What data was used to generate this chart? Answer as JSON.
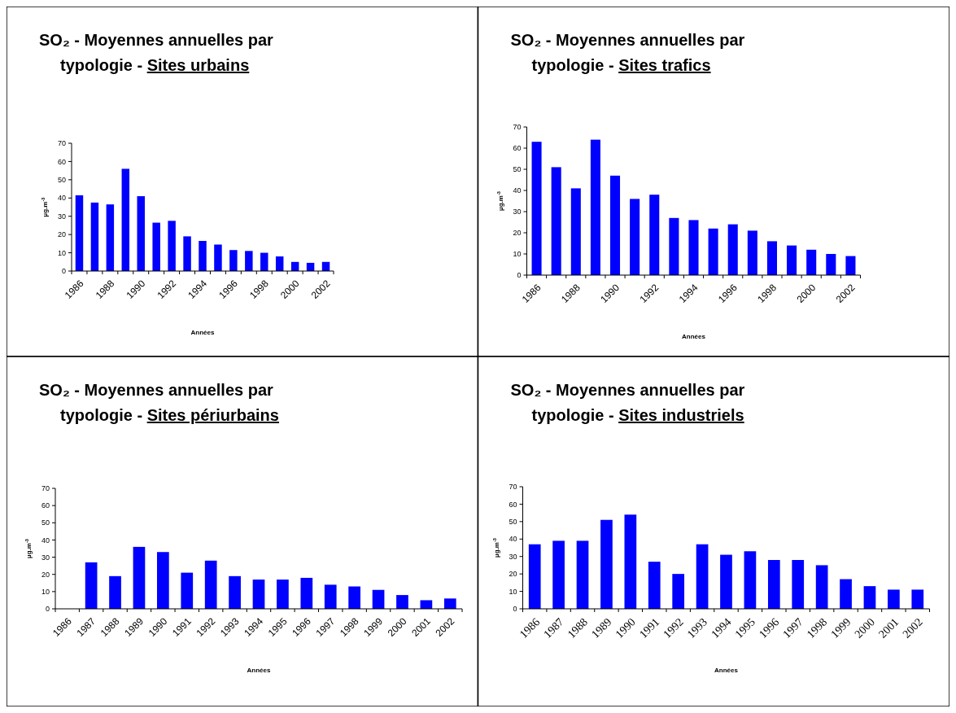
{
  "chart_data": [
    {
      "type": "bar",
      "title": "SO₂ - Moyennes annuelles par typologie -",
      "subtitle": "Sites urbains",
      "xlabel": "Années",
      "ylabel": "µg.m$^{-3}$",
      "categories": [
        "1986",
        null,
        "1988",
        null,
        "1990",
        null,
        "1992",
        null,
        "1994",
        null,
        "1996",
        null,
        "1998",
        null,
        "2000",
        null,
        "2002"
      ],
      "color": "#0000ff",
      "values": [
        41.5,
        37.5,
        36.5,
        56,
        41,
        26.5,
        27.5,
        19,
        16.5,
        14.5,
        11.5,
        11,
        10,
        8,
        5,
        4.5,
        5
      ],
      "ylim": [
        0,
        70
      ],
      "yticks": [
        0,
        10,
        20,
        30,
        40,
        50,
        60,
        70
      ],
      "grid": false
    },
    {
      "type": "bar",
      "title": "SO₂ - Moyennes annuelles par typologie -",
      "subtitle": "Sites trafics",
      "xlabel": "Années",
      "ylabel": "µg.m$^{-3}$",
      "categories": [
        "1986",
        null,
        "1988",
        null,
        "1990",
        null,
        "1992",
        null,
        "1994",
        null,
        "1996",
        null,
        "1998",
        null,
        "2000",
        null,
        "2002"
      ],
      "color": "#0000ff",
      "values": [
        63,
        51,
        41,
        64,
        47,
        36,
        38,
        27,
        26,
        22,
        24,
        21,
        16,
        14,
        12,
        10,
        9
      ],
      "ylim": [
        0,
        70
      ],
      "yticks": [
        0,
        10,
        20,
        30,
        40,
        50,
        60,
        70
      ],
      "grid": false
    },
    {
      "type": "bar",
      "title": "SO₂ - Moyennes annuelles par typologie -",
      "subtitle": "Sites périurbains",
      "xlabel": "Années",
      "ylabel": "µg.m$^{-3}$",
      "categories": [
        "1986",
        "1987",
        "1988",
        "1989",
        "1990",
        "1991",
        "1992",
        "1993",
        "1994",
        "1995",
        "1996",
        "1997",
        "1998",
        "1999",
        "2000",
        "2001",
        "2002"
      ],
      "color": "#0000ff",
      "values": [
        null,
        27,
        19,
        36,
        33,
        21,
        28,
        19,
        17,
        17,
        18,
        14,
        13,
        11,
        8,
        5,
        6
      ],
      "ylim": [
        0,
        70
      ],
      "yticks": [
        0,
        10,
        20,
        30,
        40,
        50,
        60,
        70
      ],
      "grid": false
    },
    {
      "type": "bar",
      "title": "SO₂ - Moyennes annuelles par typologie -",
      "subtitle": "Sites industriels",
      "xlabel": "Années",
      "ylabel": "µg.m$^{-3}$",
      "categories": [
        "1986",
        "1987",
        "1988",
        "1989",
        "1990",
        "1991",
        "1992",
        "1993",
        "1994",
        "1995",
        "1996",
        "1997",
        "1998",
        "1999",
        "2000",
        "2001",
        "2002"
      ],
      "color": "#0000ff",
      "values": [
        37,
        39,
        39,
        51,
        54,
        27,
        20,
        37,
        31,
        33,
        28,
        28,
        25,
        17,
        13,
        11,
        11
      ],
      "ylim": [
        0,
        70
      ],
      "yticks": [
        0,
        10,
        20,
        30,
        40,
        50,
        60,
        70
      ],
      "grid": false
    }
  ]
}
